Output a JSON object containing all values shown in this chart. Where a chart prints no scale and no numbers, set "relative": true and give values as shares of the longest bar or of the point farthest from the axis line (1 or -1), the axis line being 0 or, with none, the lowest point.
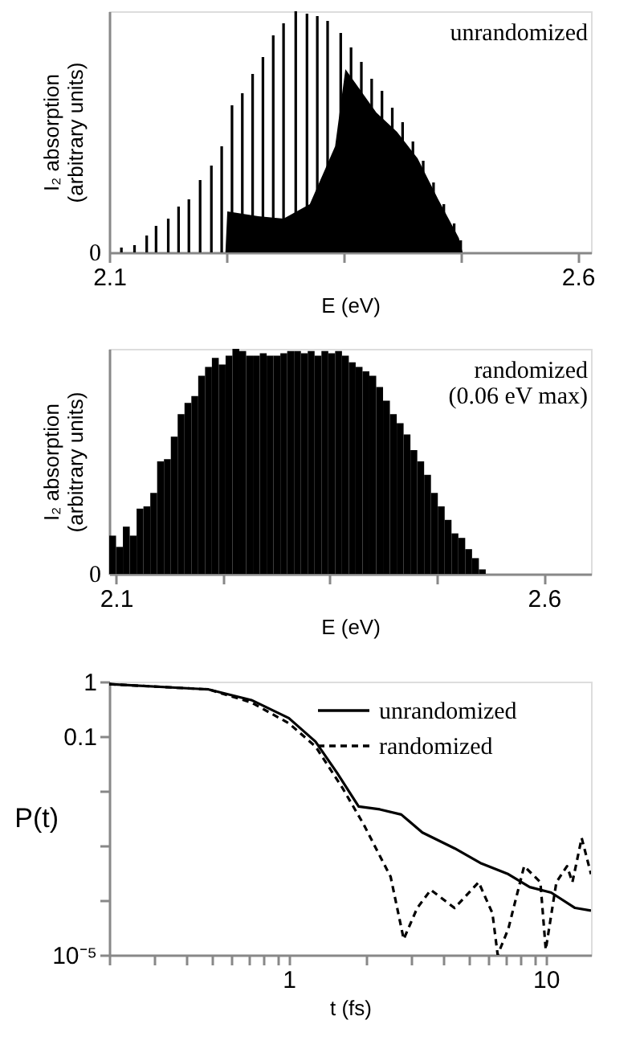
{
  "chart_data": [
    {
      "type": "bar",
      "relative": true,
      "xlabel": "E (eV)",
      "ylabel": "I₂ absorption\n(arbitrary units)",
      "xlim": [
        2.1,
        2.614
      ],
      "xticks": [
        2.1,
        {
          "value": 2.225,
          "label": null
        },
        {
          "value": 2.35,
          "label": null
        },
        {
          "value": 2.475,
          "label": null
        },
        2.6
      ],
      "annotations": [
        "unrandomized",
        "0"
      ],
      "series": [
        {
          "type": "area",
          "color": "#000000",
          "x": [
            2.224,
            2.226,
            2.259,
            2.286,
            2.314,
            2.341,
            2.352,
            2.363,
            2.385,
            2.407,
            2.429,
            2.451,
            2.473,
            2.477
          ],
          "values": [
            0,
            0.17,
            0.15,
            0.14,
            0.2,
            0.44,
            0.76,
            0.7,
            0.58,
            0.5,
            0.39,
            0.22,
            0.06,
            0
          ]
        },
        {
          "type": "bar",
          "color": "#000000",
          "x": [
            2.113,
            2.127,
            2.14,
            2.15,
            2.163,
            2.174,
            2.185,
            2.197,
            2.209,
            2.22,
            2.231,
            2.242,
            2.253,
            2.264,
            2.275,
            2.286,
            2.299,
            2.311,
            2.322,
            2.333,
            2.347,
            2.358,
            2.369,
            2.38,
            2.391,
            2.402,
            2.413,
            2.424,
            2.435,
            2.446,
            2.457,
            2.468,
            2.475
          ],
          "values": [
            0.02,
            0.03,
            0.07,
            0.11,
            0.14,
            0.19,
            0.22,
            0.3,
            0.36,
            0.44,
            0.61,
            0.66,
            0.74,
            0.81,
            0.9,
            0.95,
            1.0,
            0.99,
            0.98,
            0.96,
            0.91,
            0.85,
            0.79,
            0.72,
            0.67,
            0.6,
            0.54,
            0.46,
            0.38,
            0.29,
            0.2,
            0.12,
            0.05
          ]
        }
      ]
    },
    {
      "type": "bar",
      "relative": true,
      "xlabel": "E (eV)",
      "ylabel": "I₂ absorption\n(arbitrary units)",
      "xlim": [
        2.092,
        2.655
      ],
      "xticks": [
        2.1,
        {
          "value": 2.225,
          "label": null
        },
        {
          "value": 2.35,
          "label": null
        },
        {
          "value": 2.475,
          "label": null
        },
        2.6
      ],
      "annotations": [
        "randomized\n(0.06 eV max)",
        "0"
      ],
      "series": [
        {
          "type": "bar",
          "color": "#000000",
          "x": [
            2.096,
            2.104,
            2.112,
            2.12,
            2.128,
            2.136,
            2.144,
            2.152,
            2.16,
            2.168,
            2.176,
            2.184,
            2.192,
            2.2,
            2.208,
            2.216,
            2.224,
            2.232,
            2.24,
            2.248,
            2.256,
            2.264,
            2.272,
            2.28,
            2.288,
            2.296,
            2.304,
            2.312,
            2.32,
            2.328,
            2.336,
            2.344,
            2.352,
            2.36,
            2.368,
            2.376,
            2.384,
            2.392,
            2.4,
            2.408,
            2.416,
            2.424,
            2.432,
            2.44,
            2.448,
            2.456,
            2.464,
            2.472,
            2.48,
            2.488,
            2.496,
            2.504,
            2.512,
            2.52,
            2.528
          ],
          "values": [
            0.17,
            0.12,
            0.21,
            0.17,
            0.29,
            0.3,
            0.36,
            0.5,
            0.51,
            0.61,
            0.71,
            0.76,
            0.79,
            0.88,
            0.92,
            0.96,
            0.93,
            0.97,
            1.0,
            0.99,
            0.97,
            0.97,
            0.98,
            0.97,
            0.97,
            0.98,
            0.99,
            0.99,
            0.98,
            0.99,
            0.97,
            0.99,
            0.98,
            0.99,
            0.97,
            0.94,
            0.92,
            0.9,
            0.88,
            0.83,
            0.77,
            0.71,
            0.67,
            0.62,
            0.55,
            0.5,
            0.44,
            0.36,
            0.3,
            0.24,
            0.18,
            0.16,
            0.11,
            0.07,
            0.02
          ]
        }
      ]
    },
    {
      "type": "line",
      "log": "xy",
      "xlabel": "t (fs)",
      "ylabel": "P(t)",
      "xlim": [
        0.2,
        15
      ],
      "ylim": [
        1e-05,
        1
      ],
      "legend": "top right",
      "xticks": [
        {
          "value": 0.2,
          "label": null
        },
        {
          "value": 0.3,
          "label": null
        },
        {
          "value": 0.4,
          "label": null
        },
        {
          "value": 0.5,
          "label": null
        },
        {
          "value": 0.6,
          "label": null
        },
        {
          "value": 0.7,
          "label": null
        },
        {
          "value": 0.8,
          "label": null
        },
        {
          "value": 0.9,
          "label": null
        },
        1,
        {
          "value": 2,
          "label": null
        },
        {
          "value": 3,
          "label": null
        },
        {
          "value": 4,
          "label": null
        },
        {
          "value": 5,
          "label": null
        },
        {
          "value": 6,
          "label": null
        },
        {
          "value": 7,
          "label": null
        },
        {
          "value": 8,
          "label": null
        },
        {
          "value": 9,
          "label": null
        },
        10
      ],
      "yticks": [
        1,
        0.1,
        {
          "value": 0.01,
          "label": null
        },
        {
          "value": 0.001,
          "label": null
        },
        {
          "value": 0.0001,
          "label": null
        },
        {
          "value": 1e-05,
          "label": "10⁻⁵"
        }
      ],
      "series": [
        {
          "name": "unrandomized",
          "color": "#000000",
          "line_style": "solid",
          "x": [
            0.2,
            0.487,
            0.715,
            1,
            1.27,
            1.54,
            1.87,
            2.26,
            2.74,
            3.31,
            4.42,
            5.62,
            7.15,
            8.66,
            10.5,
            13.0,
            15.0
          ],
          "values": [
            0.9,
            0.72,
            0.46,
            0.215,
            0.08,
            0.0215,
            0.0052,
            0.0046,
            0.0037,
            0.00173,
            0.00089,
            0.00047,
            0.0003,
            0.000174,
            0.000138,
            7.24e-05,
            6.46e-05
          ]
        },
        {
          "name": "randomized",
          "color": "#000000",
          "line_style": "dashed",
          "x": [
            0.2,
            0.487,
            0.715,
            1,
            1.27,
            1.62,
            1.96,
            2.26,
            2.49,
            2.8,
            3.16,
            3.57,
            4.42,
            5.48,
            6.2,
            6.5,
            7.15,
            8.24,
            9.53,
            10.0,
            11.0,
            12.1,
            12.7,
            13.8,
            15.0
          ],
          "values": [
            0.9,
            0.72,
            0.416,
            0.173,
            0.065,
            0.0112,
            0.0024,
            0.00065,
            0.00027,
            1.94e-05,
            7.2e-05,
            0.000155,
            7.2e-05,
            0.000214,
            5.8e-05,
            1e-05,
            3e-05,
            0.00042,
            0.000214,
            1.25e-05,
            0.000214,
            0.00042,
            0.000214,
            0.00138,
            0.0003
          ]
        }
      ]
    }
  ]
}
